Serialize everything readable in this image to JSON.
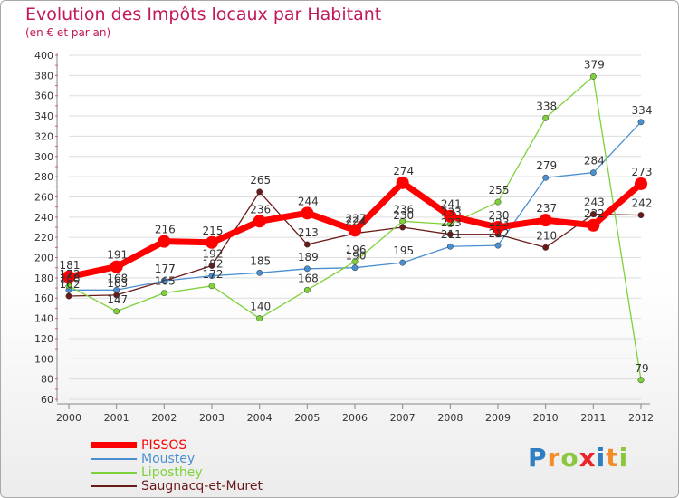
{
  "chart_data": {
    "type": "line",
    "title": "Evolution des Impôts locaux par Habitant",
    "subtitle": "(en € et par an)",
    "xlabel": "",
    "ylabel": "",
    "x": [
      "2000",
      "2001",
      "2002",
      "2003",
      "2004",
      "2005",
      "2006",
      "2007",
      "2008",
      "2009",
      "2010",
      "2011",
      "2012"
    ],
    "ylim": [
      60,
      400
    ],
    "yticks": [
      "60",
      "80",
      "100",
      "120",
      "140",
      "160",
      "180",
      "200",
      "220",
      "240",
      "260",
      "280",
      "300",
      "320",
      "340",
      "360",
      "380",
      "400"
    ],
    "grid": "horizontal",
    "legend_position": "bottom-left",
    "series": [
      {
        "name": "PISSOS",
        "color": "#ff0000",
        "values": [
          181,
          191,
          216,
          215,
          236,
          244,
          227,
          274,
          241,
          230,
          237,
          232,
          273
        ]
      },
      {
        "name": "Moustey",
        "color": "#4a8fd1",
        "values": [
          168,
          168,
          177,
          182,
          185,
          189,
          190,
          195,
          211,
          212,
          279,
          284,
          334
        ]
      },
      {
        "name": "Liposthey",
        "color": "#7fd13b",
        "values": [
          172,
          147,
          165,
          172,
          140,
          168,
          196,
          236,
          233,
          255,
          338,
          379,
          79
        ]
      },
      {
        "name": "Saugnacq-et-Muret",
        "color": "#6b1a1a",
        "values": [
          162,
          163,
          177,
          192,
          265,
          213,
          224,
          230,
          223,
          223,
          210,
          243,
          242
        ]
      }
    ]
  },
  "logo": {
    "text": "Proxiti",
    "letters": [
      "P",
      "r",
      "o",
      "x",
      "i",
      "t",
      "i"
    ],
    "colors": [
      "#2e7ec4",
      "#f28c28",
      "#8cc63f",
      "#e8262b",
      "#2e7ec4",
      "#f28c28",
      "#8cc63f"
    ]
  }
}
